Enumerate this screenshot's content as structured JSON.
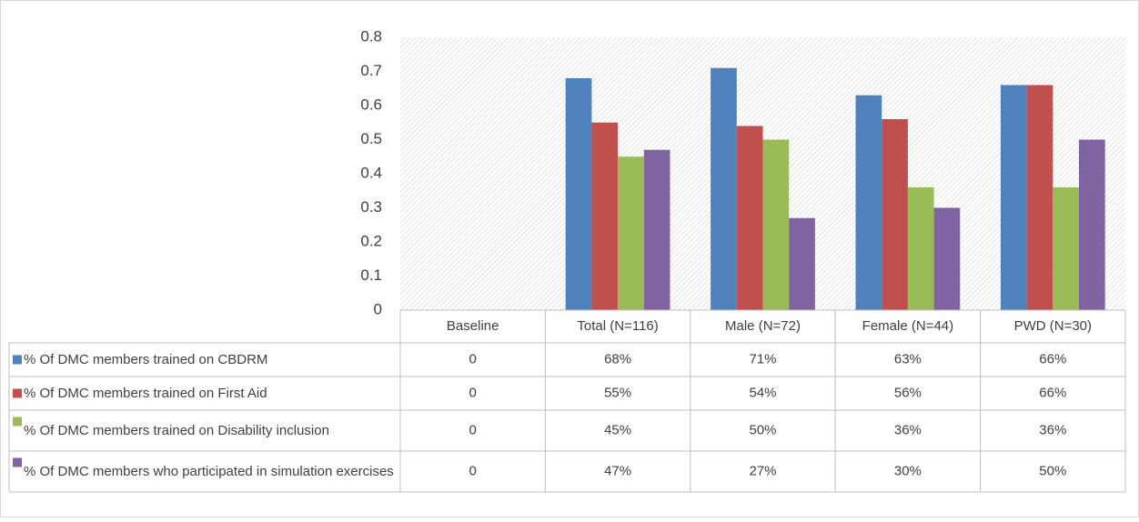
{
  "chart_data": {
    "type": "bar",
    "categories": [
      "Baseline",
      "Total (N=116)",
      "Male (N=72)",
      "Female (N=44)",
      "PWD (N=30)"
    ],
    "series": [
      {
        "name": "% Of DMC members trained on CBDRM",
        "color": "#4f81bd",
        "values": [
          0,
          0.68,
          0.71,
          0.63,
          0.66
        ],
        "value_labels": [
          "0",
          "68%",
          "71%",
          "63%",
          "66%"
        ]
      },
      {
        "name": "% Of DMC members trained on First Aid",
        "color": "#c0504d",
        "values": [
          0,
          0.55,
          0.54,
          0.56,
          0.66
        ],
        "value_labels": [
          "0",
          "55%",
          "54%",
          "56%",
          "66%"
        ]
      },
      {
        "name": "% Of DMC members trained on Disability inclusion",
        "color": "#9bbb59",
        "values": [
          0,
          0.45,
          0.5,
          0.36,
          0.36
        ],
        "value_labels": [
          "0",
          "45%",
          "50%",
          "36%",
          "36%"
        ]
      },
      {
        "name": "% Of DMC members who participated in simulation exercises",
        "color": "#8064a2",
        "values": [
          0,
          0.47,
          0.27,
          0.3,
          0.5
        ],
        "value_labels": [
          "0",
          "47%",
          "27%",
          "30%",
          "50%"
        ]
      }
    ],
    "ylim": [
      0,
      0.8
    ],
    "yticks": [
      0,
      0.1,
      0.2,
      0.3,
      0.4,
      0.5,
      0.6,
      0.7,
      0.8
    ],
    "grid": false
  }
}
